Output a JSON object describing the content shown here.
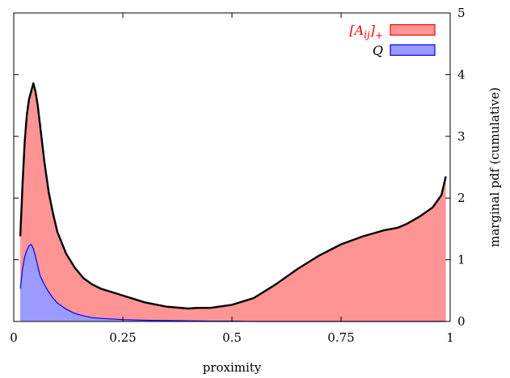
{
  "chart_data": {
    "type": "area",
    "xlabel": "proximity",
    "ylabel": "marginal pdf (cumulative)",
    "xlim": [
      0,
      1
    ],
    "ylim": [
      0,
      5
    ],
    "x_ticks": [
      0,
      0.25,
      0.5,
      0.75,
      1
    ],
    "x_tick_labels": [
      "0",
      "0.25",
      "0.5",
      "0.75",
      "1"
    ],
    "y_ticks": [
      0,
      1,
      2,
      3,
      4,
      5
    ],
    "y_tick_labels": [
      "0",
      "1",
      "2",
      "3",
      "4",
      "5"
    ],
    "y_axis_side": "right",
    "legend_position": "top-right",
    "series": [
      {
        "name": "[A_ij]_+",
        "legend_label": {
          "base": "[A",
          "sub": "ij",
          "tail": "]",
          "sup": "+"
        },
        "color": "#ff9494",
        "edge_color": "#ff0000",
        "label_color": "#ff0000",
        "x": [
          0.015,
          0.02,
          0.025,
          0.03,
          0.035,
          0.04,
          0.045,
          0.05,
          0.055,
          0.06,
          0.07,
          0.08,
          0.09,
          0.1,
          0.12,
          0.14,
          0.16,
          0.18,
          0.2,
          0.25,
          0.3,
          0.35,
          0.4,
          0.42,
          0.45,
          0.5,
          0.55,
          0.6,
          0.65,
          0.7,
          0.75,
          0.8,
          0.85,
          0.88,
          0.9,
          0.93,
          0.96,
          0.98,
          0.99
        ],
        "values": [
          1.38,
          2.2,
          2.9,
          3.35,
          3.6,
          3.73,
          3.86,
          3.72,
          3.5,
          3.2,
          2.6,
          2.1,
          1.75,
          1.45,
          1.1,
          0.87,
          0.7,
          0.6,
          0.53,
          0.42,
          0.31,
          0.24,
          0.21,
          0.22,
          0.22,
          0.27,
          0.38,
          0.6,
          0.85,
          1.07,
          1.25,
          1.38,
          1.48,
          1.52,
          1.58,
          1.7,
          1.85,
          2.05,
          2.35
        ]
      },
      {
        "name": "Q",
        "color": "#9a9aff",
        "edge_color": "#0000ff",
        "label_color": "#0000ff",
        "x": [
          0.015,
          0.02,
          0.025,
          0.03,
          0.035,
          0.04,
          0.045,
          0.05,
          0.055,
          0.06,
          0.07,
          0.08,
          0.09,
          0.1,
          0.12,
          0.14,
          0.16,
          0.18,
          0.2,
          0.25,
          0.3,
          0.35,
          0.4,
          0.45,
          0.5,
          0.55,
          0.6,
          0.65,
          0.7,
          0.75,
          0.8,
          0.85,
          0.9,
          0.95,
          0.99
        ],
        "values": [
          0.53,
          0.85,
          1.05,
          1.15,
          1.23,
          1.25,
          1.18,
          1.05,
          0.9,
          0.75,
          0.6,
          0.48,
          0.38,
          0.3,
          0.2,
          0.13,
          0.09,
          0.06,
          0.05,
          0.03,
          0.02,
          0.015,
          0.01,
          0.005,
          0.005,
          0,
          0,
          0,
          0,
          0,
          0,
          0,
          0,
          0,
          0
        ]
      }
    ]
  }
}
